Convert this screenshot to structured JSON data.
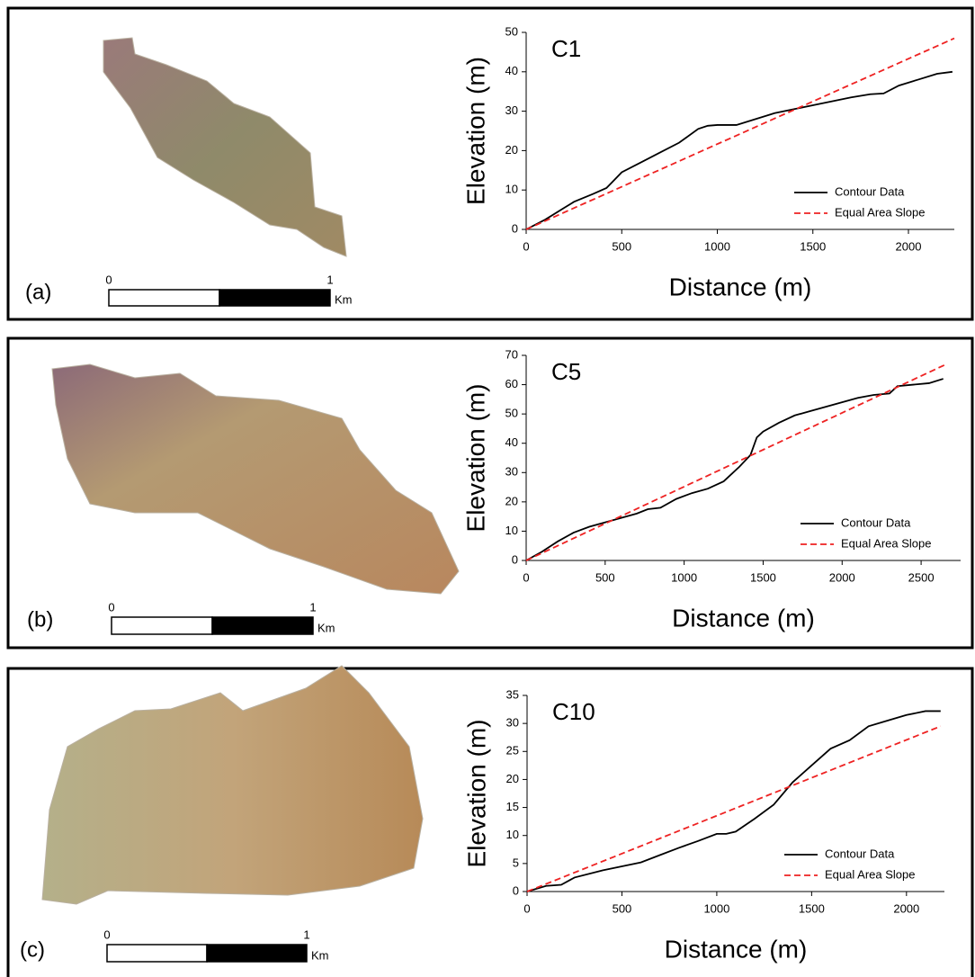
{
  "panels": [
    {
      "label": "(a)",
      "scale_bar": {
        "start": "0",
        "end": "1",
        "unit": "Km"
      }
    },
    {
      "label": "(b)",
      "scale_bar": {
        "start": "0",
        "end": "1",
        "unit": "Km"
      }
    },
    {
      "label": "(c)",
      "scale_bar": {
        "start": "0",
        "end": "1",
        "unit": "Km"
      }
    }
  ],
  "chart_data": [
    {
      "type": "line",
      "title": "C1",
      "x_label": "Distance (m)",
      "y_label": "Elevation (m)",
      "xlim": [
        0,
        2240
      ],
      "xticks": [
        0,
        500,
        1000,
        1500,
        2000
      ],
      "ylim": [
        0,
        50
      ],
      "yticks": [
        0,
        10,
        20,
        30,
        40,
        50
      ],
      "legend": "lower right",
      "series": [
        {
          "name": "Contour Data",
          "color": "#000000",
          "dash": "solid",
          "x": [
            0,
            100,
            200,
            250,
            350,
            420,
            450,
            500,
            600,
            700,
            800,
            900,
            950,
            1000,
            1100,
            1200,
            1300,
            1400,
            1500,
            1600,
            1700,
            1800,
            1870,
            1950,
            2050,
            2150,
            2230
          ],
          "values": [
            0,
            2.5,
            5.5,
            7,
            9,
            10.5,
            12,
            14.5,
            17,
            19.5,
            22,
            25.5,
            26.3,
            26.5,
            26.5,
            28,
            29.5,
            30.5,
            31.5,
            32.5,
            33.5,
            34.3,
            34.5,
            36.5,
            38,
            39.5,
            40
          ]
        },
        {
          "name": "Equal Area Slope",
          "color": "#ee2222",
          "dash": "dashed",
          "x": [
            0,
            2240
          ],
          "values": [
            0,
            48.5
          ]
        }
      ]
    },
    {
      "type": "line",
      "title": "C5",
      "x_label": "Distance (m)",
      "y_label": "Elevation (m)",
      "xlim": [
        0,
        2750
      ],
      "xticks": [
        0,
        500,
        1000,
        1500,
        2000,
        2500
      ],
      "ylim": [
        0,
        70
      ],
      "yticks": [
        0,
        10,
        20,
        30,
        40,
        50,
        60,
        70
      ],
      "legend": "lower right",
      "series": [
        {
          "name": "Contour Data",
          "color": "#000000",
          "dash": "solid",
          "x": [
            0,
            100,
            200,
            300,
            400,
            500,
            600,
            700,
            770,
            850,
            950,
            1050,
            1150,
            1250,
            1350,
            1420,
            1460,
            1500,
            1600,
            1700,
            1800,
            1900,
            2000,
            2100,
            2200,
            2300,
            2350,
            2450,
            2550,
            2640
          ],
          "values": [
            0,
            3,
            6.5,
            9.5,
            11.5,
            13,
            14.5,
            16,
            17.5,
            18,
            21,
            23,
            24.5,
            27,
            32,
            36,
            42,
            44,
            47,
            49.5,
            51,
            52.5,
            54,
            55.5,
            56.5,
            57,
            59.5,
            60,
            60.5,
            62
          ]
        },
        {
          "name": "Equal Area Slope",
          "color": "#ee2222",
          "dash": "dashed",
          "x": [
            0,
            2660
          ],
          "values": [
            0,
            67
          ]
        }
      ]
    },
    {
      "type": "line",
      "title": "C10",
      "x_label": "Distance (m)",
      "y_label": "Elevation (m)",
      "xlim": [
        0,
        2200
      ],
      "xticks": [
        0,
        500,
        1000,
        1500,
        2000
      ],
      "ylim": [
        0,
        35
      ],
      "yticks": [
        0,
        5,
        10,
        15,
        20,
        25,
        30,
        35
      ],
      "legend": "lower right",
      "series": [
        {
          "name": "Contour Data",
          "color": "#000000",
          "dash": "solid",
          "x": [
            0,
            100,
            180,
            250,
            400,
            500,
            600,
            700,
            800,
            900,
            1000,
            1050,
            1100,
            1200,
            1300,
            1400,
            1500,
            1600,
            1700,
            1800,
            1900,
            2000,
            2100,
            2180
          ],
          "values": [
            0,
            1,
            1.2,
            2.5,
            3.8,
            4.5,
            5.2,
            6.5,
            7.8,
            9,
            10.3,
            10.3,
            10.7,
            13,
            15.5,
            19.5,
            22.5,
            25.5,
            27,
            29.5,
            30.5,
            31.5,
            32.2,
            32.2
          ]
        },
        {
          "name": "Equal Area Slope",
          "color": "#ee2222",
          "dash": "dashed",
          "x": [
            0,
            2180
          ],
          "values": [
            0,
            29.5
          ]
        }
      ]
    }
  ]
}
